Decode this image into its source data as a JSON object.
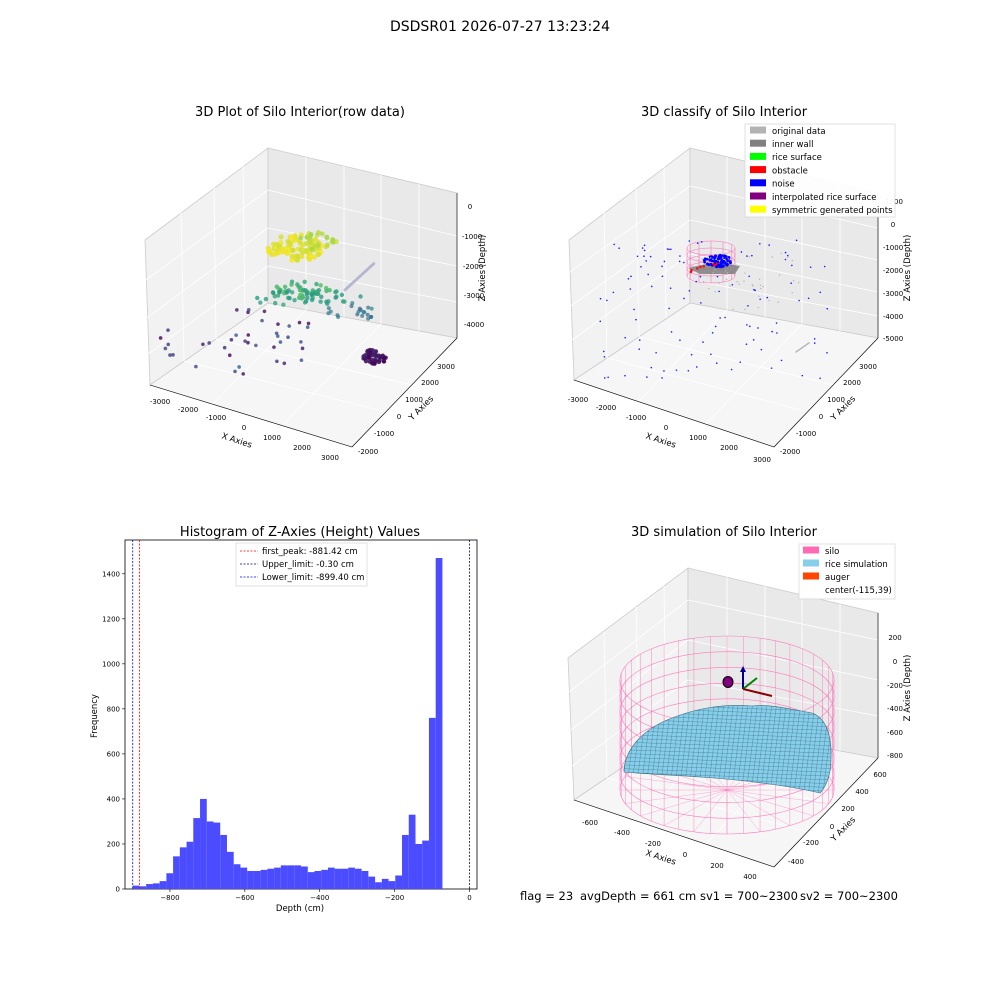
{
  "figure_title": "DSDSR01 2026-07-27 13:23:24",
  "chart_data": [
    {
      "type": "scatter",
      "title": "3D Plot of Silo Interior(row data)",
      "xlabel": "X Axies",
      "ylabel": "Y Axies",
      "zlabel": "Z Axies (Depth)",
      "x_ticks": [
        -3000,
        -2000,
        -1000,
        0,
        1000,
        2000,
        3000
      ],
      "y_ticks": [
        -2000,
        -1000,
        0,
        1000,
        2000,
        3000
      ],
      "z_ticks": [
        0,
        -1000,
        -2000,
        -3000,
        -4000
      ],
      "colormap": "viridis"
    },
    {
      "type": "scatter",
      "title": "3D classify of Silo Interior",
      "xlabel": "X Axies",
      "ylabel": "Y Axies",
      "zlabel": "Z Axies (Depth)",
      "x_ticks": [
        -3000,
        -2000,
        -1000,
        0,
        1000,
        2000,
        3000
      ],
      "y_ticks": [
        -2000,
        -1000,
        0,
        1000,
        2000,
        3000
      ],
      "z_ticks": [
        1000,
        0,
        -1000,
        -2000,
        -3000,
        -4000,
        -5000
      ],
      "legend_position": "top-right",
      "legend": [
        {
          "label": "original data",
          "color": "#b3b3b3"
        },
        {
          "label": "inner wall",
          "color": "#808080"
        },
        {
          "label": "rice surface",
          "color": "#00ff00"
        },
        {
          "label": "obstacle",
          "color": "#ff0000"
        },
        {
          "label": "noise",
          "color": "#0000ff"
        },
        {
          "label": "interpolated rice surface",
          "color": "#800080"
        },
        {
          "label": "symmetric generated points",
          "color": "#ffff00"
        }
      ]
    },
    {
      "type": "bar",
      "title": "Histogram of Z-Axies (Height) Values",
      "xlabel": "Depth (cm)",
      "ylabel": "Frequency",
      "xlim": [
        -920,
        20
      ],
      "ylim": [
        0,
        1550
      ],
      "x_ticks": [
        -800,
        -600,
        -400,
        -200,
        0
      ],
      "y_ticks": [
        0,
        200,
        400,
        600,
        800,
        1000,
        1200,
        1400
      ],
      "bar_color": "#4b4bff",
      "bin_start": -899.4,
      "bin_width": 17.98,
      "values": [
        15,
        12,
        22,
        25,
        35,
        70,
        145,
        185,
        210,
        315,
        400,
        300,
        295,
        240,
        165,
        110,
        95,
        80,
        80,
        85,
        90,
        95,
        105,
        105,
        105,
        100,
        75,
        80,
        85,
        95,
        90,
        90,
        95,
        90,
        80,
        55,
        30,
        45,
        35,
        60,
        240,
        330,
        200,
        215,
        760,
        1470
      ],
      "lines": [
        {
          "label": "first_peak: -881.42 cm",
          "value": -881.42,
          "color": "#ff0000"
        },
        {
          "label": "Upper_limit: -0.30 cm",
          "value": -0.3,
          "color": "#00008b"
        },
        {
          "label": "Lower_limit: -899.40 cm",
          "value": -899.4,
          "color": "#0000ff"
        }
      ],
      "legend_position": "top-center"
    },
    {
      "type": "surface",
      "title": "3D simulation of Silo Interior",
      "xlabel": "X Axies",
      "ylabel": "Y Axies",
      "zlabel": "Z Axies (Depth)",
      "x_ticks": [
        -600,
        -400,
        -200,
        0,
        200,
        400
      ],
      "y_ticks": [
        -400,
        -200,
        0,
        200,
        400,
        600
      ],
      "z_ticks": [
        200,
        0,
        -200,
        -400,
        -600,
        -800
      ],
      "legend_position": "top-right",
      "legend": [
        {
          "label": "silo",
          "color": "#ff69b4"
        },
        {
          "label": "rice simulation",
          "color": "#87ceeb"
        },
        {
          "label": "auger",
          "color": "#ff4500"
        },
        {
          "label": "center(-115,39)",
          "color": "none"
        }
      ]
    }
  ],
  "footer": {
    "flag": "flag = 23",
    "avg_depth": "avgDepth = 661 cm",
    "sv1": "sv1 = 700~2300",
    "sv2": "sv2 = 700~2300"
  }
}
